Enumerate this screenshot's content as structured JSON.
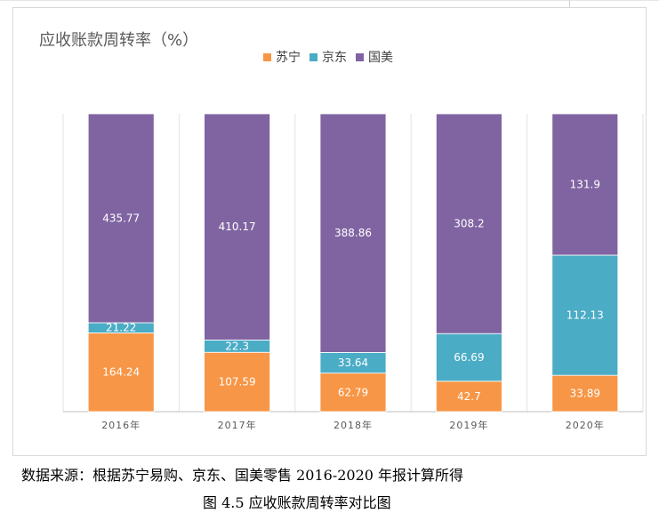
{
  "chart_data": {
    "type": "bar",
    "stacked": true,
    "normalized": true,
    "title": "应收账款周转率（%）",
    "xlabel": "",
    "ylabel": "",
    "categories": [
      "2016年",
      "2017年",
      "2018年",
      "2019年",
      "2020年"
    ],
    "series": [
      {
        "name": "苏宁",
        "color": "#F79646",
        "values": [
          164.24,
          107.59,
          62.79,
          42.7,
          33.89
        ]
      },
      {
        "name": "京东",
        "color": "#4BACC6",
        "values": [
          21.22,
          22.3,
          33.64,
          66.69,
          112.13
        ]
      },
      {
        "name": "国美",
        "color": "#8064A2",
        "values": [
          435.77,
          410.17,
          388.86,
          308.2,
          131.9
        ]
      }
    ],
    "value_labels": [
      [
        "164.24",
        "107.59",
        "62.79",
        "42.7",
        "33.89"
      ],
      [
        "21.22",
        "22.3",
        "33.64",
        "66.69",
        "112.13"
      ],
      [
        "435.77",
        "410.17",
        "388.86",
        "308.2",
        "131.9"
      ]
    ],
    "ylim": [
      0,
      1
    ],
    "grid": "vertical",
    "legend_position": "top"
  },
  "captions": {
    "source": "数据来源：根据苏宁易购、京东、国美零售 2016-2020 年报计算所得",
    "figure": "图 4.5 应收账款周转率对比图"
  }
}
